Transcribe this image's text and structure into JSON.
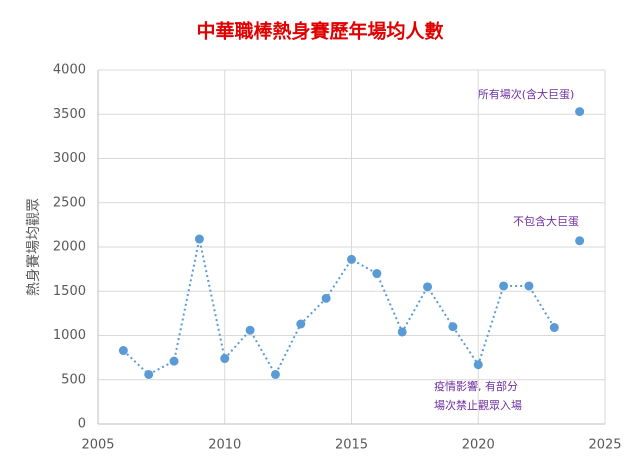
{
  "chart_data": {
    "type": "scatter",
    "title": "中華職棒熱身賽歷年場均人數",
    "y_label": "熱身賽場均觀眾",
    "xlim": [
      2005,
      2025
    ],
    "xticks": [
      2005,
      2010,
      2015,
      2020,
      2025
    ],
    "ylim": [
      0,
      4000
    ],
    "yticks": [
      0,
      500,
      1000,
      1500,
      2000,
      2500,
      3000,
      3500,
      4000
    ],
    "grid": true,
    "series": [
      {
        "color": "#5b9bd5",
        "line": "dotted",
        "x": [
          2006,
          2007,
          2008,
          2009,
          2010,
          2011,
          2012,
          2013,
          2014,
          2015,
          2016,
          2017,
          2018,
          2019,
          2020,
          2021,
          2022,
          2023
        ],
        "values": [
          830,
          560,
          710,
          2090,
          740,
          1060,
          560,
          1130,
          1420,
          1860,
          1700,
          1040,
          1550,
          1100,
          670,
          1560,
          1560,
          1090
        ]
      },
      {
        "color": "#5b9bd5",
        "x": [
          2024
        ],
        "values": [
          3530
        ]
      },
      {
        "color": "#5b9bd5",
        "x": [
          2024
        ],
        "values": [
          2070
        ]
      }
    ],
    "annotations": [
      "所有場次(含大巨蛋)",
      "不包含大巨蛋",
      "疫情影響, 有部分",
      "場次禁止觀眾入場"
    ]
  }
}
